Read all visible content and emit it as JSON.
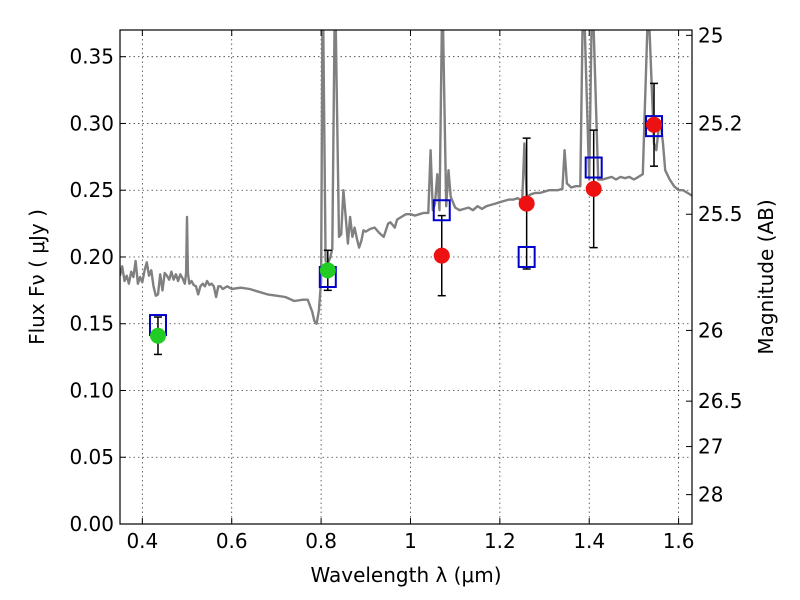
{
  "chart_data": {
    "type": "scatter",
    "xlabel": "Wavelength  λ (μm)",
    "ylabel": "Flux  Fν  ( μJy )",
    "y2label": "Magnitude (AB)",
    "xlim": [
      0.35,
      1.63
    ],
    "ylim": [
      0.0,
      0.37
    ],
    "grid": true,
    "x_ticks": [
      0.4,
      0.6,
      0.8,
      1.0,
      1.2,
      1.4,
      1.6
    ],
    "x_tick_labels": [
      "0.4",
      "0.6",
      "0.8",
      "1",
      "1.2",
      "1.4",
      "1.6"
    ],
    "y_ticks": [
      0.0,
      0.05,
      0.1,
      0.15,
      0.2,
      0.25,
      0.3,
      0.35
    ],
    "y_tick_labels": [
      "0.00",
      "0.05",
      "0.10",
      "0.15",
      "0.20",
      "0.25",
      "0.30",
      "0.35"
    ],
    "y2_ticks": [
      {
        "label": "25",
        "flux": 0.366
      },
      {
        "label": "25.2",
        "flux": 0.3
      },
      {
        "label": "25.5",
        "flux": 0.232
      },
      {
        "label": "26",
        "flux": 0.145
      },
      {
        "label": "26.5",
        "flux": 0.092
      },
      {
        "label": "27",
        "flux": 0.058
      },
      {
        "label": "28",
        "flux": 0.022
      }
    ],
    "model_spectrum": {
      "color": "#808080",
      "points": [
        [
          0.35,
          0.186
        ],
        [
          0.355,
          0.193
        ],
        [
          0.36,
          0.182
        ],
        [
          0.365,
          0.186
        ],
        [
          0.37,
          0.18
        ],
        [
          0.375,
          0.189
        ],
        [
          0.38,
          0.185
        ],
        [
          0.385,
          0.197
        ],
        [
          0.39,
          0.18
        ],
        [
          0.395,
          0.185
        ],
        [
          0.4,
          0.181
        ],
        [
          0.405,
          0.19
        ],
        [
          0.41,
          0.196
        ],
        [
          0.415,
          0.186
        ],
        [
          0.42,
          0.19
        ],
        [
          0.425,
          0.178
        ],
        [
          0.43,
          0.171
        ],
        [
          0.435,
          0.172
        ],
        [
          0.44,
          0.187
        ],
        [
          0.445,
          0.175
        ],
        [
          0.45,
          0.188
        ],
        [
          0.455,
          0.186
        ],
        [
          0.46,
          0.183
        ],
        [
          0.465,
          0.189
        ],
        [
          0.47,
          0.183
        ],
        [
          0.475,
          0.187
        ],
        [
          0.48,
          0.182
        ],
        [
          0.485,
          0.187
        ],
        [
          0.49,
          0.184
        ],
        [
          0.495,
          0.18
        ],
        [
          0.498,
          0.188
        ],
        [
          0.5,
          0.23
        ],
        [
          0.502,
          0.188
        ],
        [
          0.505,
          0.18
        ],
        [
          0.51,
          0.182
        ],
        [
          0.515,
          0.179
        ],
        [
          0.52,
          0.178
        ],
        [
          0.525,
          0.172
        ],
        [
          0.53,
          0.178
        ],
        [
          0.535,
          0.18
        ],
        [
          0.54,
          0.178
        ],
        [
          0.545,
          0.182
        ],
        [
          0.55,
          0.179
        ],
        [
          0.555,
          0.18
        ],
        [
          0.56,
          0.178
        ],
        [
          0.565,
          0.17
        ],
        [
          0.57,
          0.178
        ],
        [
          0.575,
          0.178
        ],
        [
          0.58,
          0.176
        ],
        [
          0.59,
          0.178
        ],
        [
          0.6,
          0.176
        ],
        [
          0.62,
          0.177
        ],
        [
          0.64,
          0.176
        ],
        [
          0.66,
          0.174
        ],
        [
          0.68,
          0.172
        ],
        [
          0.7,
          0.171
        ],
        [
          0.72,
          0.17
        ],
        [
          0.74,
          0.167
        ],
        [
          0.76,
          0.168
        ],
        [
          0.77,
          0.168
        ],
        [
          0.78,
          0.159
        ],
        [
          0.785,
          0.152
        ],
        [
          0.79,
          0.15
        ],
        [
          0.795,
          0.16
        ],
        [
          0.8,
          0.182
        ],
        [
          0.803,
          0.37
        ],
        [
          0.805,
          0.37
        ],
        [
          0.81,
          0.197
        ],
        [
          0.815,
          0.195
        ],
        [
          0.82,
          0.199
        ],
        [
          0.825,
          0.206
        ],
        [
          0.83,
          0.37
        ],
        [
          0.833,
          0.37
        ],
        [
          0.84,
          0.215
        ],
        [
          0.845,
          0.217
        ],
        [
          0.85,
          0.25
        ],
        [
          0.855,
          0.23
        ],
        [
          0.86,
          0.21
        ],
        [
          0.865,
          0.23
        ],
        [
          0.87,
          0.215
        ],
        [
          0.875,
          0.222
        ],
        [
          0.88,
          0.214
        ],
        [
          0.885,
          0.207
        ],
        [
          0.89,
          0.212
        ],
        [
          0.895,
          0.22
        ],
        [
          0.9,
          0.219
        ],
        [
          0.91,
          0.221
        ],
        [
          0.92,
          0.222
        ],
        [
          0.93,
          0.218
        ],
        [
          0.94,
          0.215
        ],
        [
          0.945,
          0.22
        ],
        [
          0.95,
          0.225
        ],
        [
          0.955,
          0.226
        ],
        [
          0.96,
          0.224
        ],
        [
          0.965,
          0.222
        ],
        [
          0.97,
          0.228
        ],
        [
          0.98,
          0.23
        ],
        [
          0.99,
          0.232
        ],
        [
          1.0,
          0.232
        ],
        [
          1.01,
          0.231
        ],
        [
          1.02,
          0.232
        ],
        [
          1.03,
          0.233
        ],
        [
          1.04,
          0.233
        ],
        [
          1.045,
          0.28
        ],
        [
          1.05,
          0.235
        ],
        [
          1.055,
          0.24
        ],
        [
          1.06,
          0.262
        ],
        [
          1.065,
          0.235
        ],
        [
          1.07,
          0.37
        ],
        [
          1.073,
          0.37
        ],
        [
          1.08,
          0.238
        ],
        [
          1.085,
          0.265
        ],
        [
          1.09,
          0.245
        ],
        [
          1.1,
          0.237
        ],
        [
          1.11,
          0.235
        ],
        [
          1.12,
          0.236
        ],
        [
          1.13,
          0.237
        ],
        [
          1.14,
          0.235
        ],
        [
          1.15,
          0.238
        ],
        [
          1.16,
          0.236
        ],
        [
          1.17,
          0.238
        ],
        [
          1.18,
          0.239
        ],
        [
          1.19,
          0.24
        ],
        [
          1.2,
          0.241
        ],
        [
          1.21,
          0.242
        ],
        [
          1.22,
          0.243
        ],
        [
          1.23,
          0.243
        ],
        [
          1.24,
          0.244
        ],
        [
          1.25,
          0.242
        ],
        [
          1.255,
          0.285
        ],
        [
          1.26,
          0.245
        ],
        [
          1.27,
          0.247
        ],
        [
          1.28,
          0.248
        ],
        [
          1.29,
          0.248
        ],
        [
          1.3,
          0.249
        ],
        [
          1.31,
          0.25
        ],
        [
          1.32,
          0.25
        ],
        [
          1.33,
          0.25
        ],
        [
          1.34,
          0.251
        ],
        [
          1.345,
          0.28
        ],
        [
          1.35,
          0.255
        ],
        [
          1.36,
          0.252
        ],
        [
          1.37,
          0.253
        ],
        [
          1.38,
          0.253
        ],
        [
          1.385,
          0.37
        ],
        [
          1.39,
          0.37
        ],
        [
          1.4,
          0.258
        ],
        [
          1.405,
          0.37
        ],
        [
          1.41,
          0.37
        ],
        [
          1.42,
          0.258
        ],
        [
          1.43,
          0.258
        ],
        [
          1.44,
          0.259
        ],
        [
          1.45,
          0.26
        ],
        [
          1.46,
          0.258
        ],
        [
          1.47,
          0.26
        ],
        [
          1.48,
          0.259
        ],
        [
          1.49,
          0.26
        ],
        [
          1.5,
          0.258
        ],
        [
          1.51,
          0.26
        ],
        [
          1.52,
          0.262
        ],
        [
          1.53,
          0.37
        ],
        [
          1.535,
          0.37
        ],
        [
          1.545,
          0.285
        ],
        [
          1.55,
          0.28
        ],
        [
          1.555,
          0.295
        ],
        [
          1.56,
          0.3
        ],
        [
          1.565,
          0.285
        ],
        [
          1.57,
          0.265
        ],
        [
          1.58,
          0.258
        ],
        [
          1.59,
          0.253
        ],
        [
          1.6,
          0.25
        ],
        [
          1.61,
          0.25
        ],
        [
          1.62,
          0.248
        ],
        [
          1.63,
          0.246
        ]
      ]
    },
    "series": [
      {
        "marker": "square-open",
        "color": "#0000cc",
        "points": [
          {
            "x": 0.435,
            "y": 0.149
          },
          {
            "x": 0.815,
            "y": 0.185
          },
          {
            "x": 1.07,
            "y": 0.235
          },
          {
            "x": 1.26,
            "y": 0.2
          },
          {
            "x": 1.41,
            "y": 0.267
          },
          {
            "x": 1.545,
            "y": 0.298
          }
        ]
      },
      {
        "marker": "circle",
        "color": "#22cc22",
        "points": [
          {
            "x": 0.435,
            "y": 0.141,
            "err_lo": 0.014,
            "err_hi": 0.014
          },
          {
            "x": 0.815,
            "y": 0.19,
            "err_lo": 0.015,
            "err_hi": 0.015
          }
        ]
      },
      {
        "marker": "circle",
        "color": "#ee1111",
        "points": [
          {
            "x": 1.07,
            "y": 0.201,
            "err_lo": 0.03,
            "err_hi": 0.03
          },
          {
            "x": 1.26,
            "y": 0.24,
            "err_lo": 0.049,
            "err_hi": 0.049
          },
          {
            "x": 1.41,
            "y": 0.251,
            "err_lo": 0.044,
            "err_hi": 0.044
          },
          {
            "x": 1.545,
            "y": 0.299,
            "err_lo": 0.031,
            "err_hi": 0.031
          }
        ]
      }
    ]
  }
}
